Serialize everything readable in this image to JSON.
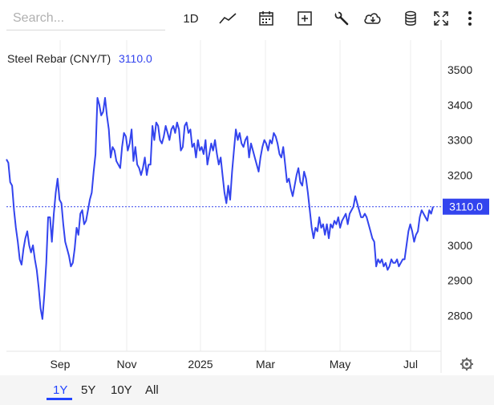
{
  "search": {
    "placeholder": "Search..."
  },
  "toolbar": {
    "interval_label": "1D"
  },
  "header": {
    "name": "Steel Rebar (CNY/T)",
    "last": "3110.0"
  },
  "ranges": {
    "r1y": "1Y",
    "r5y": "5Y",
    "r10y": "10Y",
    "rall": "All",
    "active": "1Y"
  },
  "colors": {
    "series": "#3344ee",
    "price_tag": "#3344ee",
    "text": "#222222"
  },
  "chart_data": {
    "type": "line",
    "title": "Steel Rebar (CNY/T)",
    "xlabel": "",
    "ylabel": "",
    "ylim": [
      2700,
      3560
    ],
    "yticks": [
      2800,
      2900,
      3000,
      3100,
      3200,
      3300,
      3400,
      3500
    ],
    "xtick_labels": [
      "Sep",
      "Nov",
      "2025",
      "Mar",
      "May",
      "Jul"
    ],
    "last_value": 3110.0,
    "grid": "vertical",
    "series": [
      {
        "values": [
          3245,
          3235,
          3180,
          3170,
          3100,
          3050,
          3010,
          2960,
          2945,
          2990,
          3020,
          3040,
          3000,
          2980,
          3000,
          2960,
          2930,
          2880,
          2820,
          2790,
          2860,
          2950,
          3080,
          3080,
          3010,
          3090,
          3150,
          3190,
          3130,
          3120,
          3060,
          3010,
          2990,
          2970,
          2940,
          2950,
          2990,
          3050,
          3030,
          3090,
          3100,
          3060,
          3070,
          3100,
          3130,
          3150,
          3210,
          3260,
          3420,
          3400,
          3370,
          3380,
          3420,
          3370,
          3330,
          3250,
          3280,
          3270,
          3240,
          3230,
          3220,
          3280,
          3320,
          3310,
          3270,
          3290,
          3330,
          3240,
          3280,
          3230,
          3220,
          3200,
          3220,
          3250,
          3200,
          3230,
          3230,
          3340,
          3300,
          3350,
          3340,
          3300,
          3290,
          3310,
          3340,
          3320,
          3300,
          3330,
          3340,
          3320,
          3350,
          3330,
          3270,
          3280,
          3340,
          3350,
          3320,
          3330,
          3280,
          3290,
          3250,
          3300,
          3270,
          3280,
          3260,
          3300,
          3230,
          3260,
          3290,
          3270,
          3300,
          3260,
          3230,
          3250,
          3200,
          3150,
          3120,
          3170,
          3130,
          3210,
          3270,
          3330,
          3300,
          3320,
          3290,
          3280,
          3300,
          3310,
          3250,
          3290,
          3270,
          3250,
          3230,
          3210,
          3250,
          3280,
          3300,
          3290,
          3270,
          3300,
          3290,
          3320,
          3310,
          3290,
          3260,
          3250,
          3280,
          3230,
          3180,
          3190,
          3160,
          3140,
          3170,
          3200,
          3220,
          3180,
          3170,
          3210,
          3190,
          3150,
          3100,
          3050,
          3020,
          3050,
          3040,
          3080,
          3050,
          3060,
          3030,
          3060,
          3020,
          3060,
          3050,
          3070,
          3060,
          3080,
          3050,
          3070,
          3080,
          3090,
          3060,
          3090,
          3100,
          3110,
          3140,
          3120,
          3100,
          3080,
          3080,
          3090,
          3080,
          3060,
          3040,
          3020,
          3010,
          2940,
          2960,
          2950,
          2960,
          2940,
          2950,
          2930,
          2940,
          2960,
          2950,
          2950,
          2960,
          2940,
          2950,
          2960,
          2960,
          3000,
          3040,
          3060,
          3040,
          3010,
          3030,
          3040,
          3080,
          3100,
          3090,
          3080,
          3070,
          3100,
          3090,
          3110
        ]
      }
    ]
  }
}
